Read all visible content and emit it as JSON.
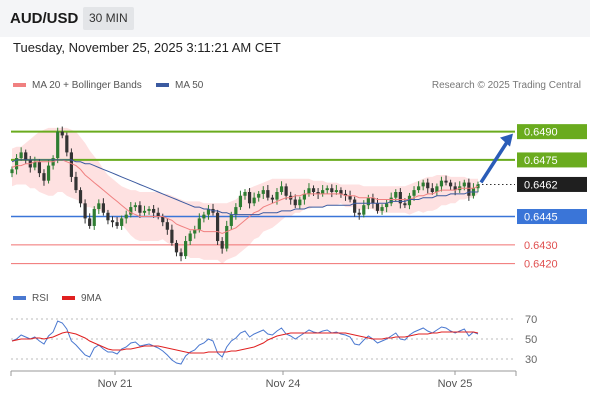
{
  "header": {
    "symbol": "AUD/USD",
    "timeframe": "30 MIN"
  },
  "timestamp": "Tuesday, November 25, 2025 3:11:21 AM CET",
  "credit": "Research © 2025 Trading Central",
  "colors": {
    "bull": "#2e7d32",
    "bear": "#333333",
    "green_level": "#6aab1e",
    "blue_level": "#3a75d8",
    "red_level": "#f07070",
    "ma20": "#f08080",
    "ma50": "#3b5aa0",
    "band": "#fdd7d7",
    "rsi": "#4a78d0",
    "rsi9": "#e02020",
    "arrow": "#2a5cb8"
  },
  "chart_data": [
    {
      "type": "candlestick",
      "legend": [
        {
          "name": "MA 20 + Bollinger Bands",
          "color": "#f08080"
        },
        {
          "name": "MA 50",
          "color": "#3b5aa0"
        }
      ],
      "ylim": [
        0.6414,
        0.6502
      ],
      "x_ticks": [
        "Nov 21",
        "Nov 24",
        "Nov 25"
      ],
      "levels": [
        {
          "value": 0.649,
          "label": "0.6490",
          "kind": "resistance"
        },
        {
          "value": 0.6475,
          "label": "0.6475",
          "kind": "resistance"
        },
        {
          "value": 0.6462,
          "label": "0.6462",
          "kind": "last"
        },
        {
          "value": 0.6445,
          "label": "0.6445",
          "kind": "pivot"
        },
        {
          "value": 0.643,
          "label": "0.6430",
          "kind": "support"
        },
        {
          "value": 0.642,
          "label": "0.6420",
          "kind": "support"
        }
      ],
      "close": [
        0.647,
        0.6476,
        0.6479,
        0.6475,
        0.6471,
        0.6474,
        0.6468,
        0.6464,
        0.6472,
        0.6476,
        0.649,
        0.6488,
        0.6479,
        0.6466,
        0.6459,
        0.6452,
        0.6444,
        0.644,
        0.6449,
        0.6452,
        0.6447,
        0.6443,
        0.6442,
        0.644,
        0.6444,
        0.6446,
        0.645,
        0.6451,
        0.6447,
        0.6448,
        0.6449,
        0.6447,
        0.6445,
        0.6442,
        0.6438,
        0.6431,
        0.6426,
        0.6424,
        0.6432,
        0.6436,
        0.6438,
        0.6444,
        0.6446,
        0.6449,
        0.6447,
        0.6432,
        0.6428,
        0.644,
        0.6446,
        0.645,
        0.6456,
        0.6458,
        0.6452,
        0.6455,
        0.6457,
        0.6459,
        0.6455,
        0.6454,
        0.6458,
        0.6461,
        0.6456,
        0.6454,
        0.6451,
        0.6454,
        0.6457,
        0.646,
        0.6458,
        0.6457,
        0.6459,
        0.646,
        0.6458,
        0.6459,
        0.6457,
        0.6456,
        0.6454,
        0.6447,
        0.6446,
        0.6451,
        0.6455,
        0.6452,
        0.6448,
        0.645,
        0.6452,
        0.6455,
        0.6458,
        0.6452,
        0.6451,
        0.6456,
        0.6459,
        0.6461,
        0.6463,
        0.646,
        0.6458,
        0.6461,
        0.6464,
        0.6463,
        0.6461,
        0.6459,
        0.6461,
        0.6463,
        0.6456,
        0.646,
        0.6462
      ],
      "series": [
        {
          "name": "MA 20",
          "values": [
            0.6471,
            0.6472,
            0.6472,
            0.6473,
            0.6473,
            0.6474,
            0.6474,
            0.6474,
            0.6474,
            0.6474,
            0.6475,
            0.6475,
            0.6474,
            0.6473,
            0.6472,
            0.647,
            0.6467,
            0.6465,
            0.6463,
            0.6461,
            0.6459,
            0.6457,
            0.6455,
            0.6453,
            0.6451,
            0.6449,
            0.6447,
            0.6446,
            0.6445,
            0.6445,
            0.6445,
            0.6445,
            0.6445,
            0.6445,
            0.6444,
            0.6443,
            0.6441,
            0.644,
            0.6439,
            0.6438,
            0.6438,
            0.6438,
            0.6437,
            0.6437,
            0.6437,
            0.6437,
            0.6436,
            0.6437,
            0.6438,
            0.6439,
            0.6441,
            0.6443,
            0.6445,
            0.6447,
            0.6448,
            0.645,
            0.6451,
            0.6452,
            0.6453,
            0.6454,
            0.6455,
            0.6455,
            0.6456,
            0.6456,
            0.6457,
            0.6457,
            0.6457,
            0.6457,
            0.6457,
            0.6457,
            0.6457,
            0.6457,
            0.6457,
            0.6456,
            0.6456,
            0.6456,
            0.6455,
            0.6455,
            0.6455,
            0.6455,
            0.6454,
            0.6454,
            0.6454,
            0.6454,
            0.6454,
            0.6454,
            0.6454,
            0.6454,
            0.6455,
            0.6456,
            0.6456,
            0.6457,
            0.6457,
            0.6458,
            0.6459,
            0.6459,
            0.6459,
            0.6459,
            0.646,
            0.646,
            0.646,
            0.646,
            0.6461
          ]
        },
        {
          "name": "MA 50",
          "values": [
            0.6474,
            0.6475,
            0.6475,
            0.6475,
            0.6475,
            0.6475,
            0.6475,
            0.6475,
            0.6475,
            0.6475,
            0.6475,
            0.6475,
            0.6475,
            0.6475,
            0.6474,
            0.6474,
            0.6473,
            0.6473,
            0.6472,
            0.6471,
            0.647,
            0.6469,
            0.6468,
            0.6467,
            0.6466,
            0.6465,
            0.6464,
            0.6463,
            0.6462,
            0.6461,
            0.646,
            0.6459,
            0.6458,
            0.6457,
            0.6456,
            0.6455,
            0.6454,
            0.6453,
            0.6452,
            0.6451,
            0.645,
            0.645,
            0.6449,
            0.6449,
            0.6448,
            0.6448,
            0.6447,
            0.6447,
            0.6446,
            0.6446,
            0.6446,
            0.6446,
            0.6446,
            0.6446,
            0.6446,
            0.6447,
            0.6447,
            0.6447,
            0.6447,
            0.6448,
            0.6448,
            0.6448,
            0.6449,
            0.6449,
            0.6449,
            0.645,
            0.645,
            0.645,
            0.645,
            0.6451,
            0.6451,
            0.6451,
            0.6451,
            0.6451,
            0.6451,
            0.6452,
            0.6452,
            0.6452,
            0.6452,
            0.6452,
            0.6452,
            0.6452,
            0.6452,
            0.6453,
            0.6453,
            0.6453,
            0.6453,
            0.6454,
            0.6454,
            0.6454,
            0.6455,
            0.6455,
            0.6455,
            0.6456,
            0.6456,
            0.6456,
            0.6457,
            0.6457,
            0.6457,
            0.6457,
            0.6458,
            0.6458,
            0.6458
          ]
        },
        {
          "name": "Bollinger Upper",
          "values": [
            0.6481,
            0.6482,
            0.6482,
            0.6484,
            0.6486,
            0.6488,
            0.649,
            0.6491,
            0.6492,
            0.6492,
            0.6492,
            0.6492,
            0.6492,
            0.6491,
            0.649,
            0.6487,
            0.6484,
            0.648,
            0.6477,
            0.6474,
            0.647,
            0.6467,
            0.6465,
            0.6463,
            0.6461,
            0.646,
            0.6459,
            0.6459,
            0.6458,
            0.6458,
            0.6458,
            0.6458,
            0.6458,
            0.6457,
            0.6457,
            0.6456,
            0.6455,
            0.6454,
            0.6453,
            0.6453,
            0.6453,
            0.6453,
            0.6452,
            0.6452,
            0.6452,
            0.6452,
            0.6452,
            0.6452,
            0.6453,
            0.6454,
            0.6456,
            0.6458,
            0.646,
            0.6461,
            0.6462,
            0.6463,
            0.6464,
            0.6465,
            0.6465,
            0.6465,
            0.6465,
            0.6465,
            0.6465,
            0.6465,
            0.6465,
            0.6465,
            0.6464,
            0.6464,
            0.6464,
            0.6463,
            0.6463,
            0.6463,
            0.6462,
            0.6462,
            0.6462,
            0.6462,
            0.6462,
            0.6461,
            0.6461,
            0.6461,
            0.6461,
            0.6461,
            0.6461,
            0.6461,
            0.6461,
            0.6461,
            0.6461,
            0.6462,
            0.6463,
            0.6464,
            0.6465,
            0.6466,
            0.6466,
            0.6467,
            0.6467,
            0.6467,
            0.6466,
            0.6466,
            0.6466,
            0.6466,
            0.6465,
            0.6465,
            0.6465
          ]
        },
        {
          "name": "Bollinger Lower",
          "values": [
            0.6461,
            0.6462,
            0.6462,
            0.6462,
            0.646,
            0.646,
            0.6458,
            0.6457,
            0.6456,
            0.6456,
            0.6458,
            0.6458,
            0.6456,
            0.6455,
            0.6454,
            0.6453,
            0.645,
            0.645,
            0.6449,
            0.6448,
            0.6448,
            0.6447,
            0.6445,
            0.6443,
            0.6441,
            0.6438,
            0.6435,
            0.6433,
            0.6432,
            0.6432,
            0.6432,
            0.6432,
            0.6432,
            0.6433,
            0.6431,
            0.643,
            0.6427,
            0.6426,
            0.6425,
            0.6423,
            0.6423,
            0.6423,
            0.6422,
            0.6422,
            0.6422,
            0.6422,
            0.642,
            0.6422,
            0.6423,
            0.6424,
            0.6426,
            0.6428,
            0.643,
            0.6433,
            0.6434,
            0.6437,
            0.6438,
            0.6439,
            0.6441,
            0.6443,
            0.6445,
            0.6445,
            0.6447,
            0.6447,
            0.6449,
            0.6449,
            0.645,
            0.645,
            0.645,
            0.6451,
            0.6451,
            0.6451,
            0.6452,
            0.645,
            0.645,
            0.645,
            0.6448,
            0.6449,
            0.6449,
            0.6449,
            0.6447,
            0.6447,
            0.6447,
            0.6447,
            0.6447,
            0.6447,
            0.6447,
            0.6446,
            0.6447,
            0.6448,
            0.6447,
            0.6448,
            0.6448,
            0.6449,
            0.6451,
            0.6451,
            0.6452,
            0.6452,
            0.6454,
            0.6454,
            0.6455,
            0.6455,
            0.6457
          ]
        }
      ],
      "forecast_arrow": {
        "from": 0.6462,
        "to": 0.649
      }
    },
    {
      "type": "line",
      "legend": [
        {
          "name": "RSI",
          "color": "#4a78d0"
        },
        {
          "name": "9MA",
          "color": "#e02020"
        }
      ],
      "ylim": [
        25,
        75
      ],
      "y_ticks": [
        "70",
        "50",
        "30"
      ],
      "series": [
        {
          "name": "RSI",
          "values": [
            48,
            50,
            54,
            52,
            50,
            52,
            48,
            45,
            53,
            57,
            68,
            66,
            60,
            48,
            44,
            39,
            34,
            32,
            41,
            44,
            40,
            37,
            37,
            35,
            40,
            42,
            46,
            47,
            43,
            44,
            45,
            43,
            41,
            38,
            34,
            29,
            26,
            25,
            33,
            37,
            39,
            44,
            46,
            50,
            48,
            36,
            32,
            42,
            48,
            51,
            56,
            58,
            52,
            55,
            57,
            59,
            55,
            54,
            58,
            61,
            55,
            53,
            50,
            53,
            56,
            59,
            57,
            56,
            58,
            59,
            56,
            57,
            55,
            54,
            52,
            45,
            44,
            49,
            53,
            50,
            46,
            48,
            50,
            53,
            56,
            50,
            49,
            54,
            57,
            59,
            61,
            58,
            56,
            59,
            62,
            61,
            58,
            56,
            58,
            60,
            53,
            57,
            55
          ]
        },
        {
          "name": "9MA",
          "values": [
            48,
            49,
            50,
            50,
            50,
            51,
            51,
            50,
            51,
            52,
            54,
            56,
            57,
            56,
            55,
            53,
            51,
            48,
            46,
            44,
            42,
            40,
            39,
            39,
            39,
            40,
            40,
            41,
            42,
            43,
            43,
            43,
            43,
            42,
            41,
            40,
            39,
            38,
            37,
            36,
            36,
            36,
            36,
            37,
            37,
            37,
            37,
            37,
            38,
            38,
            39,
            40,
            41,
            42,
            44,
            46,
            49,
            51,
            53,
            54,
            55,
            56,
            56,
            56,
            56,
            56,
            56,
            56,
            56,
            56,
            56,
            56,
            56,
            56,
            55,
            54,
            53,
            52,
            51,
            50,
            50,
            50,
            51,
            51,
            52,
            52,
            52,
            53,
            54,
            55,
            55,
            55,
            56,
            56,
            57,
            57,
            57,
            57,
            57,
            57,
            57,
            57,
            56
          ]
        }
      ]
    }
  ]
}
